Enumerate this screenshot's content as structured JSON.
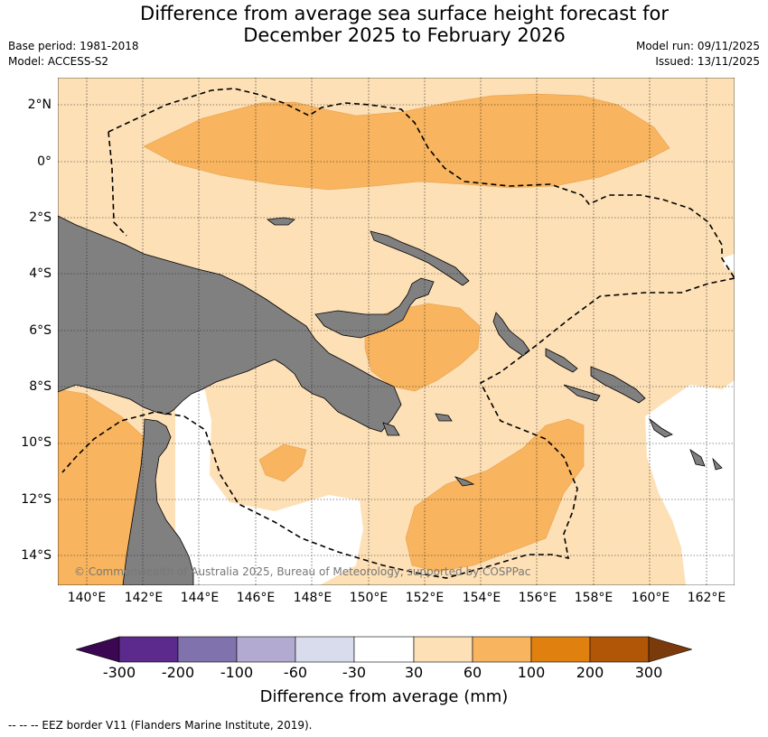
{
  "title": {
    "line1": "Difference from average sea surface height forecast for",
    "line2": "December 2025 to February 2026"
  },
  "meta": {
    "base_period": "Base period: 1981-2018",
    "model": "Model: ACCESS-S2",
    "model_run": "Model run: 09/11/2025",
    "issued": "Issued: 13/11/2025"
  },
  "map": {
    "lat_labels": [
      "2°N",
      "0°",
      "2°S",
      "4°S",
      "6°S",
      "8°S",
      "10°S",
      "12°S",
      "14°S"
    ],
    "lon_labels": [
      "140°E",
      "142°E",
      "144°E",
      "146°E",
      "148°E",
      "150°E",
      "152°E",
      "154°E",
      "156°E",
      "158°E",
      "160°E",
      "162°E"
    ],
    "copyright": "© Commonwealth of Australia 2025, Bureau of Meteorology, supported by COSPPac",
    "colors": {
      "land": "#808080",
      "class_30_60": "#fde0b6",
      "class_60_100": "#f8b45e",
      "near_zero": "#ffffff"
    }
  },
  "colorbar": {
    "tick_labels": [
      "-300",
      "-200",
      "-100",
      "-60",
      "-30",
      "30",
      "60",
      "100",
      "200",
      "300"
    ],
    "title": "Difference from average (mm)",
    "colors": [
      "#3b0752",
      "#5b2a8c",
      "#8073ad",
      "#b3aad2",
      "#d9dcec",
      "#ffffff",
      "#fde0b6",
      "#f8b45e",
      "#e0800f",
      "#b05606",
      "#7a3a0b"
    ]
  },
  "footer": "--  --  -- EEZ border V11 (Flanders Marine Institute, 2019)."
}
